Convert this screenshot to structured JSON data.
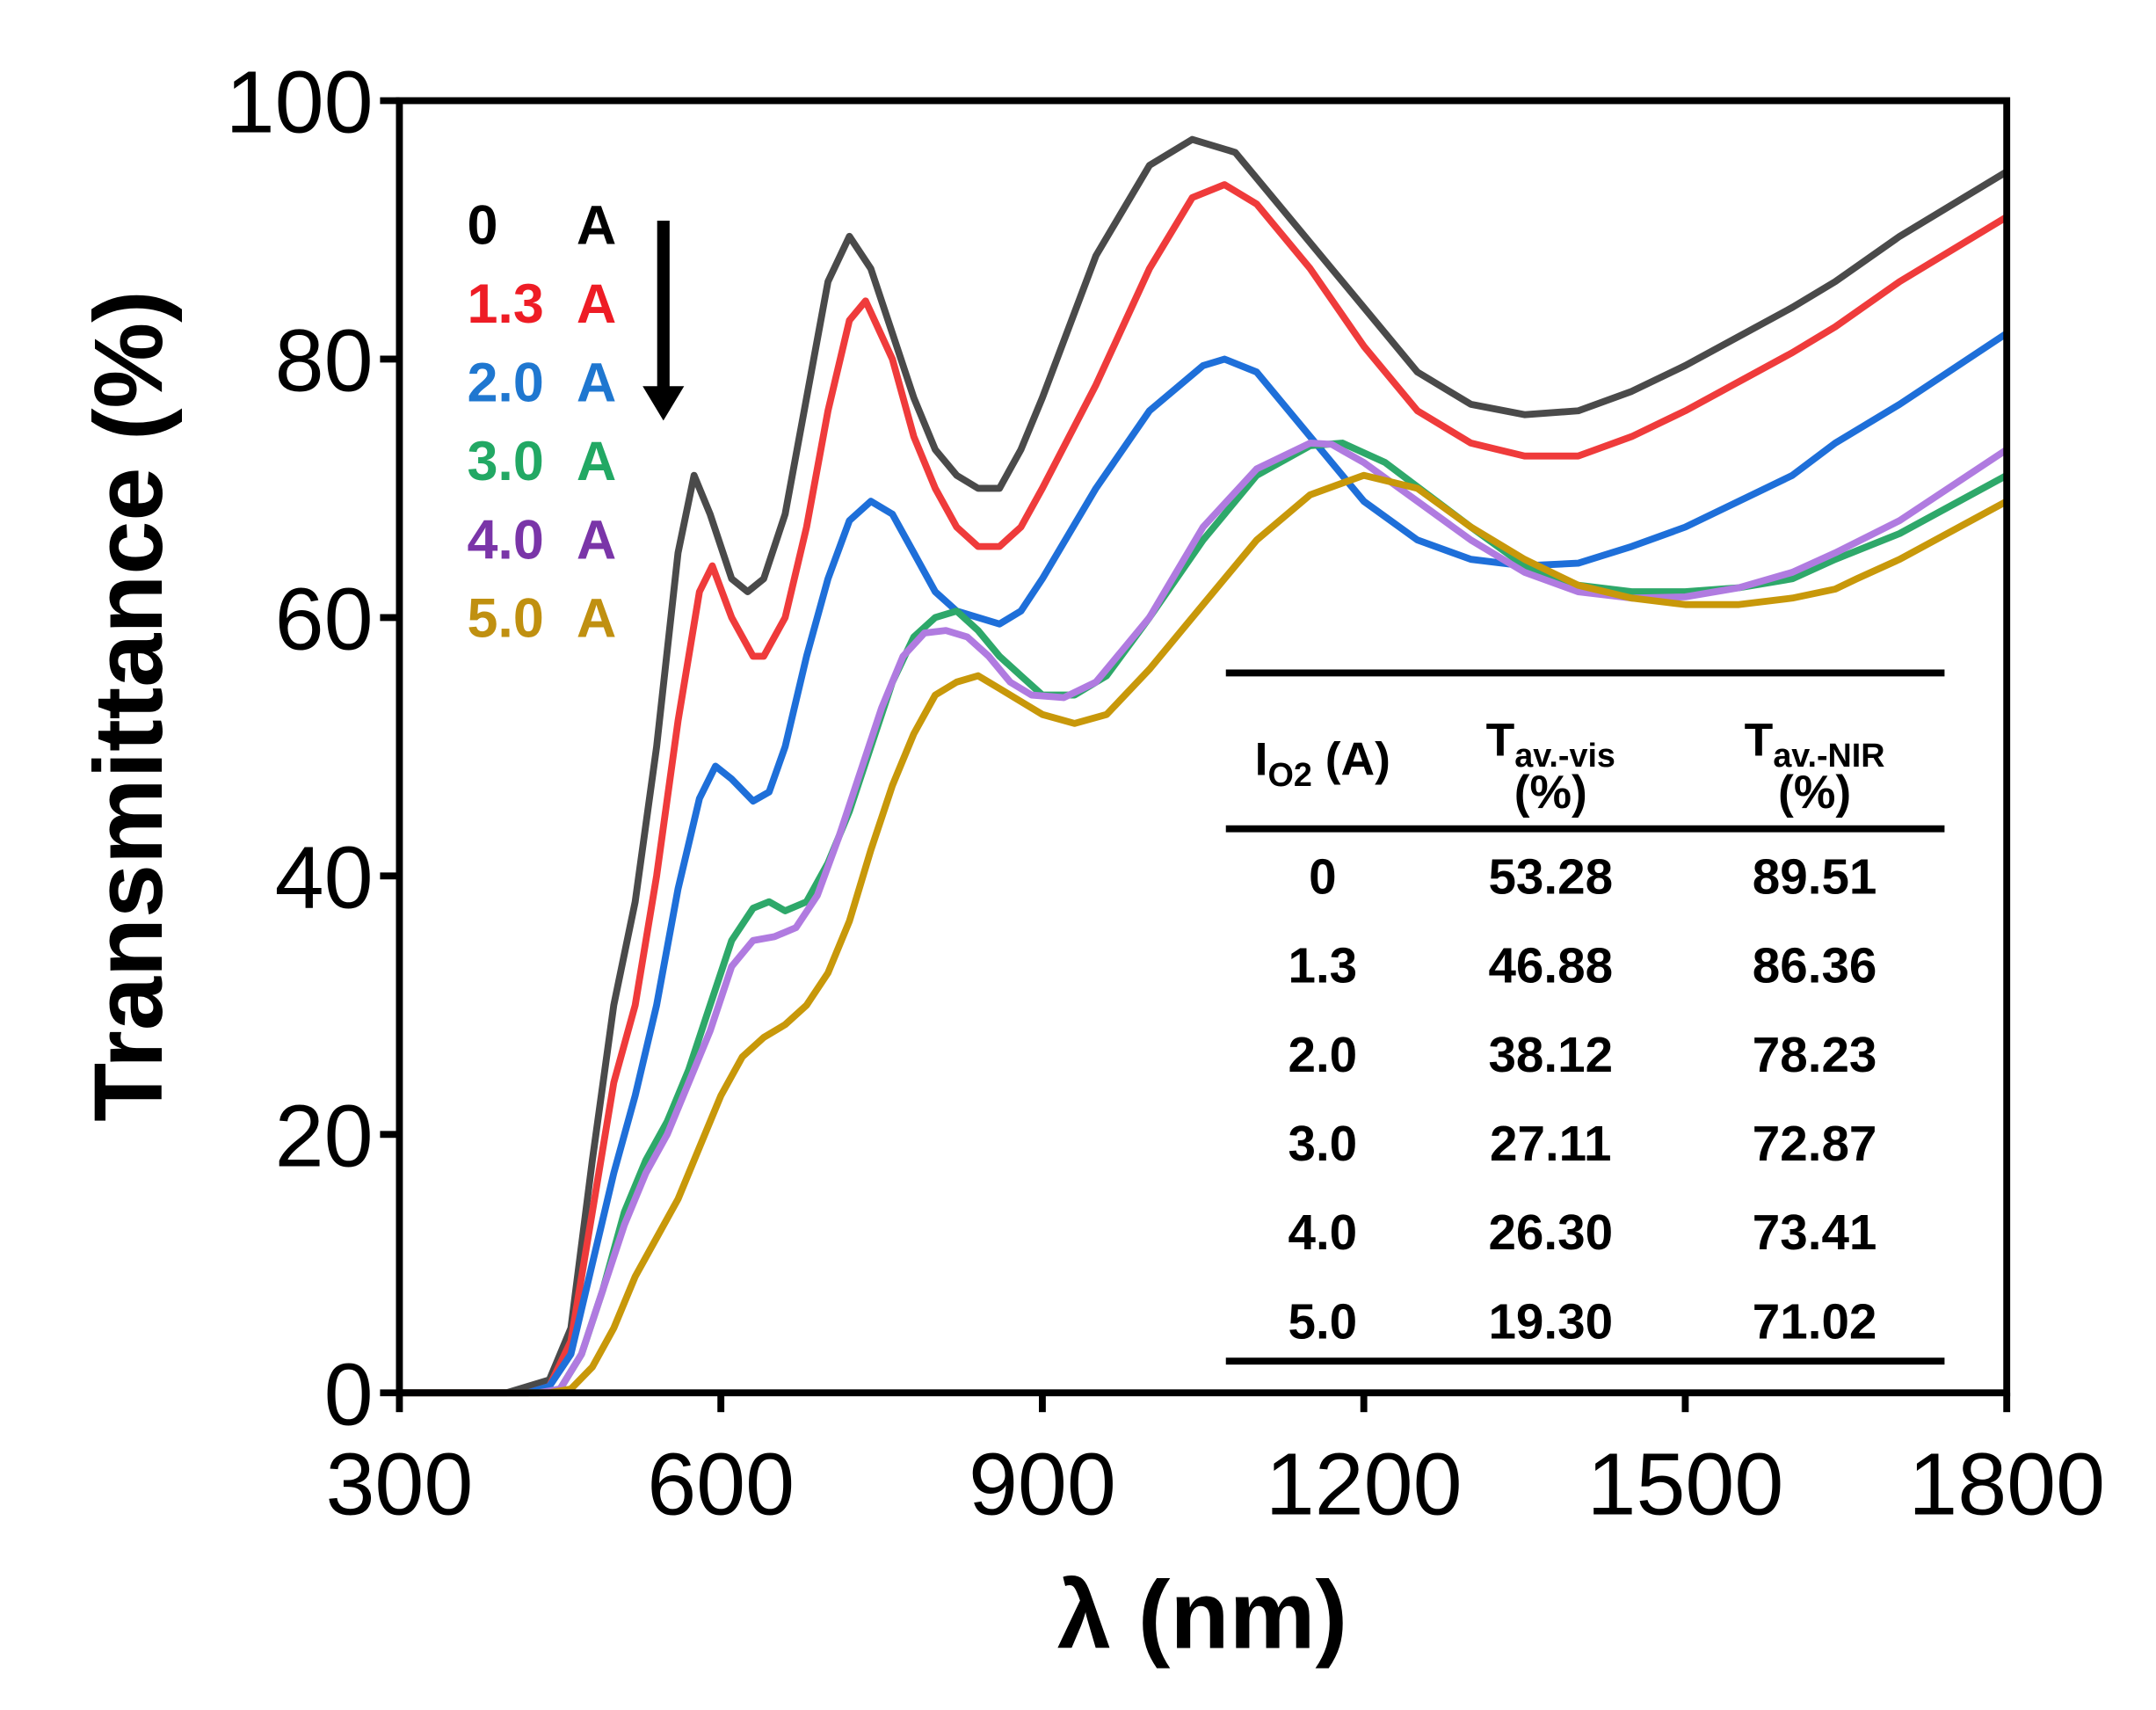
{
  "chart_data": {
    "type": "line",
    "xlabel": "λ (nm)",
    "ylabel": "Transmittance (%)",
    "xlim": [
      300,
      1800
    ],
    "ylim": [
      0,
      100
    ],
    "xticks": [
      "300",
      "600",
      "900",
      "1200",
      "1500",
      "1800"
    ],
    "yticks": [
      "0",
      "20",
      "40",
      "60",
      "80",
      "100"
    ],
    "grid": false,
    "legend_placement": "top-left",
    "legend_arrow": "down",
    "series": [
      {
        "name": "0",
        "unit": "A",
        "color": "#4a4a4a",
        "label_color": "#000000",
        "points": [
          [
            300,
            0
          ],
          [
            400,
            0
          ],
          [
            440,
            1
          ],
          [
            460,
            5
          ],
          [
            480,
            18
          ],
          [
            500,
            30
          ],
          [
            520,
            38
          ],
          [
            540,
            50
          ],
          [
            560,
            65
          ],
          [
            575,
            71
          ],
          [
            590,
            68
          ],
          [
            610,
            63
          ],
          [
            625,
            62
          ],
          [
            640,
            63
          ],
          [
            660,
            68
          ],
          [
            680,
            77
          ],
          [
            700,
            86
          ],
          [
            720,
            89.5
          ],
          [
            740,
            87
          ],
          [
            760,
            82
          ],
          [
            780,
            77
          ],
          [
            800,
            73
          ],
          [
            820,
            71
          ],
          [
            840,
            70
          ],
          [
            860,
            70
          ],
          [
            880,
            73
          ],
          [
            900,
            77
          ],
          [
            950,
            88
          ],
          [
            1000,
            95
          ],
          [
            1040,
            97
          ],
          [
            1080,
            96
          ],
          [
            1120,
            92
          ],
          [
            1200,
            84
          ],
          [
            1250,
            79
          ],
          [
            1300,
            76.5
          ],
          [
            1350,
            75.7
          ],
          [
            1400,
            76
          ],
          [
            1450,
            77.5
          ],
          [
            1500,
            79.5
          ],
          [
            1600,
            84
          ],
          [
            1640,
            86
          ],
          [
            1700,
            89.5
          ],
          [
            1800,
            94.5
          ]
        ]
      },
      {
        "name": "1.3",
        "unit": "A",
        "color": "#ef3b3b",
        "label_color": "#ee1c25",
        "points": [
          [
            300,
            0
          ],
          [
            420,
            0
          ],
          [
            440,
            0.5
          ],
          [
            460,
            4
          ],
          [
            480,
            14
          ],
          [
            500,
            24
          ],
          [
            520,
            30
          ],
          [
            540,
            40
          ],
          [
            560,
            52
          ],
          [
            580,
            62
          ],
          [
            592,
            64
          ],
          [
            610,
            60
          ],
          [
            630,
            57
          ],
          [
            640,
            57
          ],
          [
            660,
            60
          ],
          [
            680,
            67
          ],
          [
            700,
            76
          ],
          [
            720,
            83
          ],
          [
            735,
            84.5
          ],
          [
            760,
            80
          ],
          [
            780,
            74
          ],
          [
            800,
            70
          ],
          [
            820,
            67
          ],
          [
            840,
            65.5
          ],
          [
            860,
            65.5
          ],
          [
            880,
            67
          ],
          [
            900,
            70
          ],
          [
            950,
            78
          ],
          [
            1000,
            87
          ],
          [
            1040,
            92.5
          ],
          [
            1070,
            93.5
          ],
          [
            1100,
            92
          ],
          [
            1150,
            87
          ],
          [
            1200,
            81
          ],
          [
            1250,
            76
          ],
          [
            1300,
            73.5
          ],
          [
            1350,
            72.5
          ],
          [
            1400,
            72.5
          ],
          [
            1450,
            74
          ],
          [
            1500,
            76
          ],
          [
            1600,
            80.5
          ],
          [
            1640,
            82.5
          ],
          [
            1700,
            86
          ],
          [
            1800,
            91
          ]
        ]
      },
      {
        "name": "2.0",
        "unit": "A",
        "color": "#1e6fd9",
        "label_color": "#1f77d0",
        "points": [
          [
            300,
            0
          ],
          [
            420,
            0
          ],
          [
            440,
            0.5
          ],
          [
            460,
            3
          ],
          [
            480,
            10
          ],
          [
            500,
            17
          ],
          [
            520,
            23
          ],
          [
            540,
            30
          ],
          [
            560,
            39
          ],
          [
            580,
            46
          ],
          [
            595,
            48.5
          ],
          [
            610,
            47.5
          ],
          [
            630,
            45.8
          ],
          [
            645,
            46.5
          ],
          [
            660,
            50
          ],
          [
            680,
            57
          ],
          [
            700,
            63
          ],
          [
            720,
            67.5
          ],
          [
            740,
            69
          ],
          [
            760,
            68
          ],
          [
            780,
            65
          ],
          [
            800,
            62
          ],
          [
            820,
            60.5
          ],
          [
            840,
            60
          ],
          [
            860,
            59.5
          ],
          [
            880,
            60.5
          ],
          [
            900,
            63
          ],
          [
            950,
            70
          ],
          [
            1000,
            76
          ],
          [
            1050,
            79.5
          ],
          [
            1070,
            80
          ],
          [
            1100,
            79
          ],
          [
            1150,
            74
          ],
          [
            1200,
            69
          ],
          [
            1250,
            66
          ],
          [
            1300,
            64.5
          ],
          [
            1350,
            64
          ],
          [
            1400,
            64.2
          ],
          [
            1450,
            65.5
          ],
          [
            1500,
            67
          ],
          [
            1600,
            71
          ],
          [
            1640,
            73.5
          ],
          [
            1700,
            76.5
          ],
          [
            1800,
            82
          ]
        ]
      },
      {
        "name": "3.0",
        "unit": "A",
        "color": "#2ea86a",
        "label_color": "#22a864",
        "points": [
          [
            300,
            0
          ],
          [
            430,
            0
          ],
          [
            450,
            0.3
          ],
          [
            470,
            3
          ],
          [
            490,
            8
          ],
          [
            510,
            14
          ],
          [
            530,
            18
          ],
          [
            550,
            21
          ],
          [
            570,
            25
          ],
          [
            590,
            30
          ],
          [
            610,
            35
          ],
          [
            630,
            37.5
          ],
          [
            645,
            38
          ],
          [
            660,
            37.3
          ],
          [
            680,
            38
          ],
          [
            700,
            41
          ],
          [
            720,
            45
          ],
          [
            740,
            50
          ],
          [
            760,
            55
          ],
          [
            780,
            58.5
          ],
          [
            800,
            60
          ],
          [
            820,
            60.5
          ],
          [
            840,
            59
          ],
          [
            860,
            57
          ],
          [
            880,
            55.5
          ],
          [
            900,
            54
          ],
          [
            930,
            54
          ],
          [
            960,
            55.5
          ],
          [
            1000,
            60
          ],
          [
            1050,
            66
          ],
          [
            1100,
            71
          ],
          [
            1150,
            73.3
          ],
          [
            1180,
            73.5
          ],
          [
            1220,
            72
          ],
          [
            1300,
            67
          ],
          [
            1350,
            64
          ],
          [
            1400,
            62.5
          ],
          [
            1450,
            62
          ],
          [
            1500,
            62
          ],
          [
            1550,
            62.3
          ],
          [
            1600,
            63
          ],
          [
            1640,
            64.5
          ],
          [
            1700,
            66.5
          ],
          [
            1800,
            71
          ]
        ]
      },
      {
        "name": "4.0",
        "unit": "A",
        "color": "#b07be0",
        "label_color": "#7a35a8",
        "points": [
          [
            300,
            0
          ],
          [
            430,
            0
          ],
          [
            450,
            0.3
          ],
          [
            470,
            3
          ],
          [
            490,
            8
          ],
          [
            510,
            13
          ],
          [
            530,
            17
          ],
          [
            550,
            20
          ],
          [
            570,
            24
          ],
          [
            590,
            28
          ],
          [
            610,
            33
          ],
          [
            630,
            35
          ],
          [
            650,
            35.3
          ],
          [
            670,
            36
          ],
          [
            690,
            38.5
          ],
          [
            710,
            43
          ],
          [
            730,
            48
          ],
          [
            750,
            53
          ],
          [
            770,
            57
          ],
          [
            790,
            58.8
          ],
          [
            810,
            59
          ],
          [
            830,
            58.5
          ],
          [
            850,
            57
          ],
          [
            870,
            55
          ],
          [
            890,
            54
          ],
          [
            920,
            53.8
          ],
          [
            950,
            55
          ],
          [
            1000,
            60
          ],
          [
            1050,
            67
          ],
          [
            1100,
            71.5
          ],
          [
            1150,
            73.5
          ],
          [
            1170,
            73.4
          ],
          [
            1200,
            72
          ],
          [
            1250,
            69
          ],
          [
            1300,
            66
          ],
          [
            1350,
            63.5
          ],
          [
            1400,
            62
          ],
          [
            1450,
            61.5
          ],
          [
            1500,
            61.6
          ],
          [
            1550,
            62.3
          ],
          [
            1600,
            63.5
          ],
          [
            1640,
            65
          ],
          [
            1700,
            67.5
          ],
          [
            1800,
            73
          ]
        ]
      },
      {
        "name": "5.0",
        "unit": "A",
        "color": "#c8980a",
        "label_color": "#c09010",
        "points": [
          [
            300,
            0
          ],
          [
            440,
            0
          ],
          [
            460,
            0.3
          ],
          [
            480,
            2
          ],
          [
            500,
            5
          ],
          [
            520,
            9
          ],
          [
            540,
            12
          ],
          [
            560,
            15
          ],
          [
            580,
            19
          ],
          [
            600,
            23
          ],
          [
            620,
            26
          ],
          [
            640,
            27.5
          ],
          [
            660,
            28.5
          ],
          [
            680,
            30
          ],
          [
            700,
            32.5
          ],
          [
            720,
            36.5
          ],
          [
            740,
            42
          ],
          [
            760,
            47
          ],
          [
            780,
            51
          ],
          [
            800,
            54
          ],
          [
            820,
            55
          ],
          [
            840,
            55.5
          ],
          [
            860,
            54.5
          ],
          [
            880,
            53.5
          ],
          [
            900,
            52.5
          ],
          [
            930,
            51.8
          ],
          [
            960,
            52.5
          ],
          [
            1000,
            56
          ],
          [
            1050,
            61
          ],
          [
            1100,
            66
          ],
          [
            1150,
            69.5
          ],
          [
            1200,
            71
          ],
          [
            1250,
            70
          ],
          [
            1300,
            67
          ],
          [
            1350,
            64.5
          ],
          [
            1400,
            62.5
          ],
          [
            1450,
            61.5
          ],
          [
            1500,
            61
          ],
          [
            1550,
            61
          ],
          [
            1600,
            61.5
          ],
          [
            1640,
            62.2
          ],
          [
            1660,
            63
          ],
          [
            1700,
            64.5
          ],
          [
            1800,
            69
          ]
        ]
      }
    ],
    "inset_table": {
      "headers": [
        {
          "main": "I",
          "sub": "O2",
          "suffix": " (A)"
        },
        {
          "main": "T",
          "sub": "av.-vis",
          "line2": "(%)"
        },
        {
          "main": "T",
          "sub": "av.-NIR",
          "line2": "(%)"
        }
      ],
      "rows": [
        [
          "0",
          "53.28",
          "89.51"
        ],
        [
          "1.3",
          "46.88",
          "86.36"
        ],
        [
          "2.0",
          "38.12",
          "78.23"
        ],
        [
          "3.0",
          "27.11",
          "72.87"
        ],
        [
          "4.0",
          "26.30",
          "73.41"
        ],
        [
          "5.0",
          "19.30",
          "71.02"
        ]
      ]
    }
  }
}
